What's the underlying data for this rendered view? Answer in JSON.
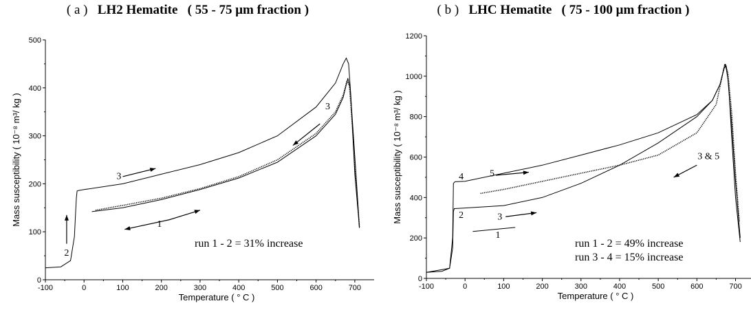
{
  "chart_data": [
    {
      "type": "line",
      "panel_label": "( a )",
      "title": "LH2 Hematite   ( 55 - 75 μm fraction )",
      "xlabel": "Temperature  ( ° C )",
      "ylabel": "Mass susceptibility  ( 10⁻⁸  m³/ kg )",
      "xlim": [
        -100,
        750
      ],
      "ylim": [
        0,
        500
      ],
      "xticks": [
        -100,
        0,
        100,
        200,
        300,
        400,
        500,
        600,
        700
      ],
      "yticks": [
        0,
        100,
        200,
        300,
        400,
        500
      ],
      "note": "run 1 - 2 =  31%  increase",
      "series": [
        {
          "style": "solid",
          "x": [
            -100,
            -60,
            -35,
            -25,
            -20,
            -18,
            -15,
            0,
            100,
            200,
            300,
            400,
            500,
            600,
            650,
            670,
            678,
            684,
            690,
            700,
            712
          ],
          "y": [
            25,
            27,
            40,
            90,
            170,
            185,
            186,
            188,
            200,
            220,
            240,
            265,
            300,
            360,
            410,
            450,
            462,
            450,
            380,
            220,
            110
          ]
        },
        {
          "style": "dotted",
          "x": [
            30,
            100,
            200,
            300,
            400,
            500,
            600,
            650,
            670,
            680,
            686,
            692,
            702,
            712
          ],
          "y": [
            145,
            155,
            170,
            190,
            215,
            250,
            305,
            350,
            385,
            415,
            405,
            340,
            220,
            110
          ]
        },
        {
          "style": "solid",
          "x": [
            20,
            100,
            200,
            300,
            400,
            500,
            600,
            650,
            670,
            682,
            688,
            694,
            704,
            712
          ],
          "y": [
            142,
            150,
            167,
            188,
            212,
            245,
            300,
            345,
            380,
            420,
            400,
            330,
            210,
            108
          ]
        }
      ],
      "annotations": [
        {
          "text": "3",
          "x": 90,
          "y": 210
        },
        {
          "text": "3",
          "x": 630,
          "y": 355
        },
        {
          "text": "1",
          "x": 195,
          "y": 110
        },
        {
          "text": "2",
          "x": -45,
          "y": 50
        }
      ]
    },
    {
      "type": "line",
      "panel_label": "( b )",
      "title": "LHC Hematite   ( 75 - 100 μm fraction )",
      "xlabel": "Temperature  ( ° C )",
      "ylabel": "Mass susceptibility  ( 10⁻⁸  m³/ kg )",
      "xlim": [
        -100,
        740
      ],
      "ylim": [
        0,
        1200
      ],
      "xticks": [
        -100,
        0,
        100,
        200,
        300,
        400,
        500,
        600,
        700
      ],
      "yticks": [
        0,
        200,
        400,
        600,
        800,
        1000,
        1200
      ],
      "note_lines": [
        "run 1 - 2 =  49%  increase",
        "run 3 - 4 =  15%  increase"
      ],
      "series": [
        {
          "style": "solid",
          "x": [
            -100,
            -60,
            -40,
            -32,
            -30,
            -28,
            0,
            100,
            200,
            300,
            400,
            500,
            600,
            640,
            660,
            670,
            676,
            682,
            690,
            700,
            712
          ],
          "y": [
            30,
            35,
            50,
            150,
            330,
            345,
            348,
            360,
            400,
            470,
            560,
            670,
            800,
            880,
            960,
            1040,
            1050,
            960,
            700,
            400,
            180
          ]
        },
        {
          "style": "solid",
          "x": [
            -100,
            -40,
            -32,
            -30,
            -26,
            0,
            100,
            200,
            300,
            400,
            500,
            600,
            640,
            660,
            668,
            674,
            680,
            690,
            700,
            712
          ],
          "y": [
            30,
            50,
            200,
            470,
            478,
            480,
            520,
            560,
            610,
            660,
            720,
            810,
            880,
            960,
            1020,
            1060,
            990,
            760,
            480,
            200
          ]
        },
        {
          "style": "dotted",
          "x": [
            40,
            100,
            200,
            300,
            400,
            500,
            600,
            650,
            672,
            680,
            690,
            700,
            710
          ],
          "y": [
            420,
            440,
            480,
            520,
            560,
            610,
            720,
            860,
            1060,
            1020,
            820,
            520,
            280
          ]
        },
        {
          "style": "solid",
          "x": [
            20,
            130
          ],
          "y": [
            232,
            252
          ]
        }
      ],
      "annotations": [
        {
          "text": "4",
          "x": -10,
          "y": 490
        },
        {
          "text": "5",
          "x": 70,
          "y": 505
        },
        {
          "text": "2",
          "x": -10,
          "y": 300
        },
        {
          "text": "3",
          "x": 90,
          "y": 290
        },
        {
          "text": "1",
          "x": 85,
          "y": 200
        },
        {
          "text": "3 & 5",
          "x": 630,
          "y": 590
        }
      ]
    }
  ]
}
